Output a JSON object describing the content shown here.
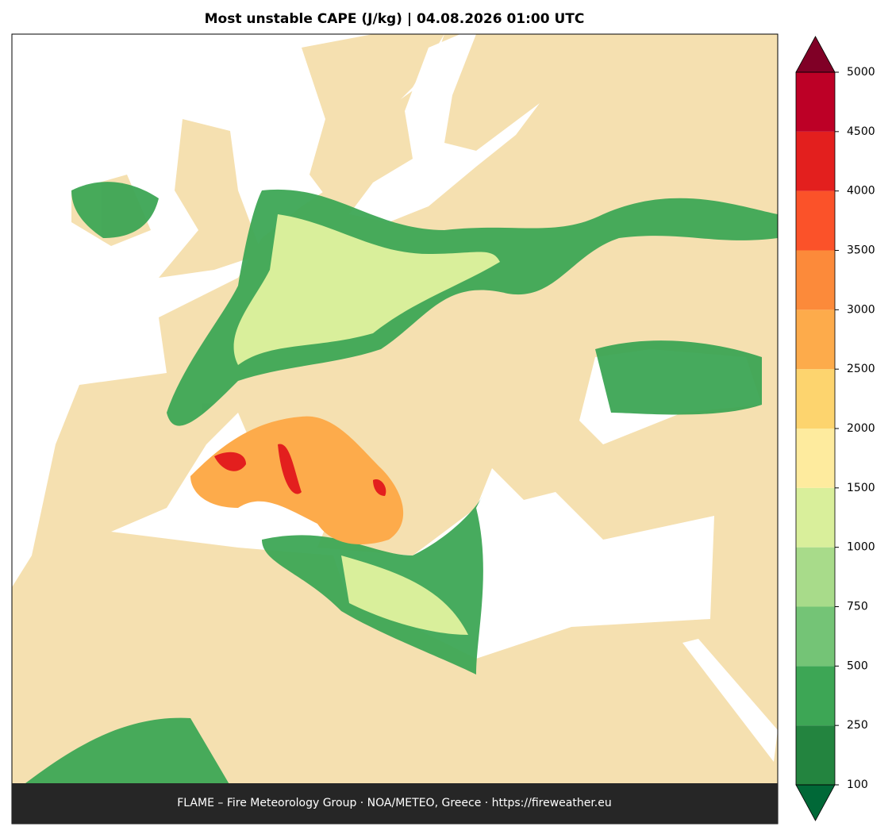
{
  "title": "Most unstable CAPE (J/kg)  |  04.08.2026 01:00 UTC",
  "footer": "FLAME – Fire Meteorology Group · NOA/METEO, Greece · https://fireweather.eu",
  "colorbar": {
    "ticks": [
      100,
      250,
      500,
      750,
      1000,
      1500,
      2000,
      2500,
      3000,
      3500,
      4000,
      4500,
      5000
    ],
    "colors": [
      "#23843f",
      "#3da655",
      "#74c476",
      "#a8db8a",
      "#d9ef9b",
      "#feeb9e",
      "#fdd46e",
      "#fdab4b",
      "#fc8a3a",
      "#fb5229",
      "#e31f1e",
      "#bd0026"
    ],
    "under_color": "#006837",
    "over_color": "#800026"
  }
}
